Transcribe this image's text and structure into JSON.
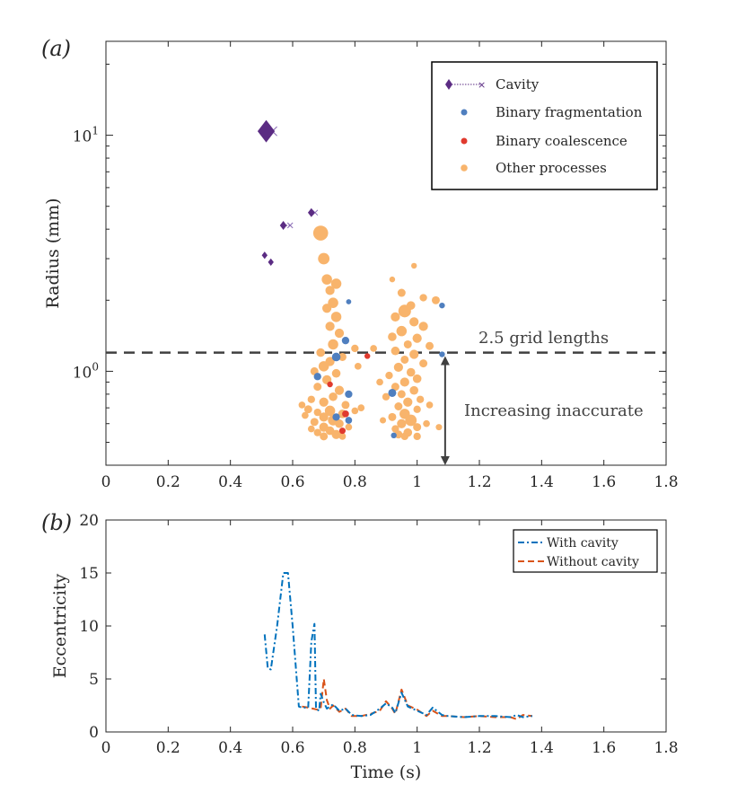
{
  "chart_data": [
    {
      "panel": "(a)",
      "type": "scatter",
      "title": "",
      "xlabel": "",
      "ylabel": "Radius (mm)",
      "xscale": "linear",
      "yscale": "log",
      "xlim": [
        0,
        1.8
      ],
      "ylim": [
        0.4,
        25
      ],
      "xticks": [
        "0",
        "0.2",
        "0.4",
        "0.6",
        "0.8",
        "1",
        "1.2",
        "1.4",
        "1.6",
        "1.8"
      ],
      "xtick_values": [
        0,
        0.2,
        0.4,
        0.6,
        0.8,
        1.0,
        1.2,
        1.4,
        1.6,
        1.8
      ],
      "yticks": [
        {
          "value": 1,
          "base": "10",
          "exp": "0"
        },
        {
          "value": 10,
          "base": "10",
          "exp": "1"
        }
      ],
      "legend_position": "top-right",
      "series": [
        {
          "name": "Cavity",
          "marker": "diamond-x",
          "color": "#5b2c83",
          "points": [
            {
              "x": 0.515,
              "y": 10.4,
              "s": 3.0,
              "x2": 0.535
            },
            {
              "x": 0.57,
              "y": 4.15,
              "s": 1.2,
              "x2": 0.592
            },
            {
              "x": 0.66,
              "y": 4.7,
              "s": 1.2,
              "x2": 0.672
            },
            {
              "x": 0.51,
              "y": 3.1,
              "s": 1.0
            },
            {
              "x": 0.53,
              "y": 2.9,
              "s": 1.0
            }
          ]
        },
        {
          "name": "Binary fragmentation",
          "marker": "circle",
          "color": "#4f7fbf",
          "points": [
            {
              "x": 0.78,
              "y": 1.97,
              "s": 0.9
            },
            {
              "x": 1.08,
              "y": 1.9,
              "s": 1.0
            },
            {
              "x": 0.77,
              "y": 1.35,
              "s": 1.3
            },
            {
              "x": 0.74,
              "y": 1.15,
              "s": 1.5
            },
            {
              "x": 1.08,
              "y": 1.18,
              "s": 1.0
            },
            {
              "x": 0.68,
              "y": 0.95,
              "s": 1.3
            },
            {
              "x": 0.78,
              "y": 0.8,
              "s": 1.3
            },
            {
              "x": 0.92,
              "y": 0.81,
              "s": 1.4
            },
            {
              "x": 0.74,
              "y": 0.64,
              "s": 1.3
            },
            {
              "x": 0.78,
              "y": 0.62,
              "s": 1.2
            },
            {
              "x": 0.925,
              "y": 0.535,
              "s": 1.0
            }
          ]
        },
        {
          "name": "Binary coalescence",
          "marker": "circle",
          "color": "#e03a2e",
          "points": [
            {
              "x": 0.84,
              "y": 1.16,
              "s": 1.0
            },
            {
              "x": 0.72,
              "y": 0.88,
              "s": 1.0
            },
            {
              "x": 0.77,
              "y": 0.66,
              "s": 1.2
            },
            {
              "x": 0.76,
              "y": 0.56,
              "s": 1.1
            }
          ]
        },
        {
          "name": "Other processes",
          "marker": "circle",
          "color": "#f8b46c",
          "points": [
            {
              "x": 0.69,
              "y": 3.85,
              "s": 2.6
            },
            {
              "x": 0.7,
              "y": 3.0,
              "s": 2.0
            },
            {
              "x": 0.71,
              "y": 2.45,
              "s": 1.8
            },
            {
              "x": 0.74,
              "y": 2.35,
              "s": 1.8
            },
            {
              "x": 0.72,
              "y": 2.2,
              "s": 1.6
            },
            {
              "x": 0.73,
              "y": 1.95,
              "s": 1.8
            },
            {
              "x": 0.71,
              "y": 1.85,
              "s": 1.6
            },
            {
              "x": 0.74,
              "y": 1.7,
              "s": 1.8
            },
            {
              "x": 0.72,
              "y": 1.55,
              "s": 1.6
            },
            {
              "x": 0.75,
              "y": 1.45,
              "s": 1.6
            },
            {
              "x": 0.73,
              "y": 1.3,
              "s": 1.8
            },
            {
              "x": 0.69,
              "y": 1.2,
              "s": 1.5
            },
            {
              "x": 0.72,
              "y": 1.1,
              "s": 1.6
            },
            {
              "x": 0.7,
              "y": 1.05,
              "s": 1.8
            },
            {
              "x": 0.67,
              "y": 1.0,
              "s": 1.4
            },
            {
              "x": 0.74,
              "y": 0.98,
              "s": 1.5
            },
            {
              "x": 0.71,
              "y": 0.92,
              "s": 1.6
            },
            {
              "x": 0.68,
              "y": 0.86,
              "s": 1.4
            },
            {
              "x": 0.75,
              "y": 0.83,
              "s": 1.6
            },
            {
              "x": 0.73,
              "y": 0.78,
              "s": 1.5
            },
            {
              "x": 0.66,
              "y": 0.76,
              "s": 1.3
            },
            {
              "x": 0.7,
              "y": 0.74,
              "s": 1.6
            },
            {
              "x": 0.63,
              "y": 0.72,
              "s": 1.2
            },
            {
              "x": 0.77,
              "y": 0.72,
              "s": 1.4
            },
            {
              "x": 0.65,
              "y": 0.69,
              "s": 1.4
            },
            {
              "x": 0.72,
              "y": 0.68,
              "s": 1.8
            },
            {
              "x": 0.68,
              "y": 0.67,
              "s": 1.3
            },
            {
              "x": 0.8,
              "y": 0.68,
              "s": 1.2
            },
            {
              "x": 0.64,
              "y": 0.65,
              "s": 1.2
            },
            {
              "x": 0.76,
              "y": 0.66,
              "s": 1.5
            },
            {
              "x": 0.7,
              "y": 0.64,
              "s": 1.6
            },
            {
              "x": 0.73,
              "y": 0.62,
              "s": 1.8
            },
            {
              "x": 0.67,
              "y": 0.61,
              "s": 1.4
            },
            {
              "x": 0.75,
              "y": 0.6,
              "s": 1.5
            },
            {
              "x": 0.7,
              "y": 0.58,
              "s": 1.6
            },
            {
              "x": 0.72,
              "y": 0.56,
              "s": 1.5
            },
            {
              "x": 0.68,
              "y": 0.55,
              "s": 1.3
            },
            {
              "x": 0.74,
              "y": 0.54,
              "s": 1.6
            },
            {
              "x": 0.7,
              "y": 0.53,
              "s": 1.4
            },
            {
              "x": 0.76,
              "y": 0.53,
              "s": 1.2
            },
            {
              "x": 0.66,
              "y": 0.57,
              "s": 1.2
            },
            {
              "x": 0.78,
              "y": 0.58,
              "s": 1.2
            },
            {
              "x": 0.82,
              "y": 0.7,
              "s": 1.2
            },
            {
              "x": 0.81,
              "y": 1.05,
              "s": 1.2
            },
            {
              "x": 0.8,
              "y": 1.25,
              "s": 1.3
            },
            {
              "x": 0.76,
              "y": 1.15,
              "s": 1.4
            },
            {
              "x": 0.86,
              "y": 1.25,
              "s": 1.2
            },
            {
              "x": 0.99,
              "y": 2.8,
              "s": 1.0
            },
            {
              "x": 0.92,
              "y": 2.45,
              "s": 1.0
            },
            {
              "x": 0.95,
              "y": 2.15,
              "s": 1.4
            },
            {
              "x": 1.02,
              "y": 2.05,
              "s": 1.3
            },
            {
              "x": 1.06,
              "y": 2.0,
              "s": 1.4
            },
            {
              "x": 0.98,
              "y": 1.9,
              "s": 1.5
            },
            {
              "x": 0.96,
              "y": 1.8,
              "s": 2.2
            },
            {
              "x": 0.93,
              "y": 1.7,
              "s": 1.6
            },
            {
              "x": 0.99,
              "y": 1.62,
              "s": 1.6
            },
            {
              "x": 1.02,
              "y": 1.55,
              "s": 1.6
            },
            {
              "x": 0.95,
              "y": 1.48,
              "s": 1.8
            },
            {
              "x": 0.92,
              "y": 1.4,
              "s": 1.5
            },
            {
              "x": 1.0,
              "y": 1.38,
              "s": 1.6
            },
            {
              "x": 0.97,
              "y": 1.3,
              "s": 1.4
            },
            {
              "x": 1.04,
              "y": 1.28,
              "s": 1.4
            },
            {
              "x": 0.93,
              "y": 1.22,
              "s": 1.5
            },
            {
              "x": 0.99,
              "y": 1.18,
              "s": 1.6
            },
            {
              "x": 0.96,
              "y": 1.12,
              "s": 1.4
            },
            {
              "x": 1.02,
              "y": 1.08,
              "s": 1.4
            },
            {
              "x": 0.94,
              "y": 1.04,
              "s": 1.6
            },
            {
              "x": 0.98,
              "y": 0.99,
              "s": 1.5
            },
            {
              "x": 0.91,
              "y": 0.96,
              "s": 1.3
            },
            {
              "x": 1.0,
              "y": 0.93,
              "s": 1.5
            },
            {
              "x": 0.96,
              "y": 0.9,
              "s": 1.6
            },
            {
              "x": 0.93,
              "y": 0.86,
              "s": 1.4
            },
            {
              "x": 0.99,
              "y": 0.83,
              "s": 1.5
            },
            {
              "x": 0.95,
              "y": 0.8,
              "s": 1.4
            },
            {
              "x": 0.9,
              "y": 0.78,
              "s": 1.3
            },
            {
              "x": 1.01,
              "y": 0.76,
              "s": 1.3
            },
            {
              "x": 0.97,
              "y": 0.74,
              "s": 1.6
            },
            {
              "x": 0.94,
              "y": 0.71,
              "s": 1.4
            },
            {
              "x": 1.0,
              "y": 0.69,
              "s": 1.3
            },
            {
              "x": 0.96,
              "y": 0.66,
              "s": 1.8
            },
            {
              "x": 0.92,
              "y": 0.64,
              "s": 1.4
            },
            {
              "x": 0.98,
              "y": 0.62,
              "s": 2.0
            },
            {
              "x": 0.95,
              "y": 0.6,
              "s": 1.6
            },
            {
              "x": 1.0,
              "y": 0.58,
              "s": 1.4
            },
            {
              "x": 0.93,
              "y": 0.57,
              "s": 1.3
            },
            {
              "x": 0.97,
              "y": 0.55,
              "s": 1.5
            },
            {
              "x": 0.94,
              "y": 0.54,
              "s": 1.4
            },
            {
              "x": 1.0,
              "y": 0.53,
              "s": 1.3
            },
            {
              "x": 0.96,
              "y": 0.53,
              "s": 1.3
            },
            {
              "x": 1.03,
              "y": 0.6,
              "s": 1.2
            },
            {
              "x": 1.04,
              "y": 0.72,
              "s": 1.2
            },
            {
              "x": 1.07,
              "y": 0.58,
              "s": 1.1
            },
            {
              "x": 0.89,
              "y": 0.62,
              "s": 1.1
            },
            {
              "x": 0.88,
              "y": 0.9,
              "s": 1.2
            }
          ]
        }
      ],
      "reference_line": {
        "y": 1.2,
        "label": "2.5 grid lengths",
        "style": "dashed"
      },
      "annotation": {
        "text": "Increasing inaccurate",
        "x": 1.09,
        "y_top": 1.16,
        "y_bottom": 0.4
      }
    },
    {
      "panel": "(b)",
      "type": "line",
      "title": "",
      "xlabel": "Time (s)",
      "ylabel": "Eccentricity",
      "xlim": [
        0,
        1.8
      ],
      "ylim": [
        0,
        20
      ],
      "xticks": [
        "0",
        "0.2",
        "0.4",
        "0.6",
        "0.8",
        "1",
        "1.2",
        "1.4",
        "1.6",
        "1.8"
      ],
      "xtick_values": [
        0,
        0.2,
        0.4,
        0.6,
        0.8,
        1.0,
        1.2,
        1.4,
        1.6,
        1.8
      ],
      "yticks": [
        "0",
        "5",
        "10",
        "15",
        "20"
      ],
      "ytick_values": [
        0,
        5,
        10,
        15,
        20
      ],
      "legend_position": "top-right",
      "series": [
        {
          "name": "With cavity",
          "color": "#0072bd",
          "dash": "dashdot",
          "x": [
            0.51,
            0.52,
            0.53,
            0.55,
            0.57,
            0.585,
            0.6,
            0.62,
            0.63,
            0.65,
            0.66,
            0.67,
            0.675,
            0.685,
            0.69,
            0.7,
            0.71,
            0.72,
            0.73,
            0.75,
            0.77,
            0.79,
            0.82,
            0.85,
            0.88,
            0.9,
            0.92,
            0.93,
            0.95,
            0.97,
            1.0,
            1.03,
            1.05,
            1.08,
            1.1,
            1.15,
            1.2,
            1.25,
            1.3,
            1.32,
            1.34,
            1.37
          ],
          "y": [
            9.2,
            6.0,
            5.9,
            10.0,
            15.0,
            15.0,
            10.0,
            2.4,
            2.3,
            2.3,
            8.5,
            10.2,
            2.2,
            2.0,
            3.6,
            2.8,
            2.2,
            2.4,
            2.6,
            2.0,
            2.2,
            1.6,
            1.5,
            1.6,
            2.2,
            2.7,
            2.3,
            1.8,
            3.7,
            2.4,
            2.0,
            1.6,
            2.3,
            1.6,
            1.5,
            1.4,
            1.5,
            1.5,
            1.4,
            1.6,
            1.4,
            1.5
          ]
        },
        {
          "name": "Without cavity",
          "color": "#d95319",
          "dash": "dashed",
          "x": [
            0.63,
            0.65,
            0.68,
            0.69,
            0.7,
            0.71,
            0.72,
            0.73,
            0.75,
            0.77,
            0.79,
            0.82,
            0.85,
            0.88,
            0.9,
            0.92,
            0.93,
            0.95,
            0.97,
            1.0,
            1.03,
            1.05,
            1.08,
            1.1,
            1.15,
            1.2,
            1.25,
            1.3,
            1.32,
            1.34,
            1.37
          ],
          "y": [
            2.4,
            2.3,
            2.1,
            2.2,
            5.0,
            3.0,
            2.2,
            2.5,
            1.9,
            2.2,
            1.5,
            1.5,
            1.7,
            2.0,
            2.9,
            2.2,
            1.7,
            4.0,
            2.5,
            2.1,
            1.5,
            2.0,
            1.5,
            1.5,
            1.4,
            1.5,
            1.4,
            1.4,
            1.2,
            1.6,
            1.5
          ]
        }
      ]
    }
  ],
  "labels": {
    "panel_a": "(a)",
    "panel_b": "(b)",
    "a_ylabel": "Radius (mm)",
    "b_ylabel": "Eccentricity",
    "b_xlabel": "Time (s)",
    "grid_label": "2.5 grid lengths",
    "inaccurate_label": "Increasing inaccurate"
  }
}
